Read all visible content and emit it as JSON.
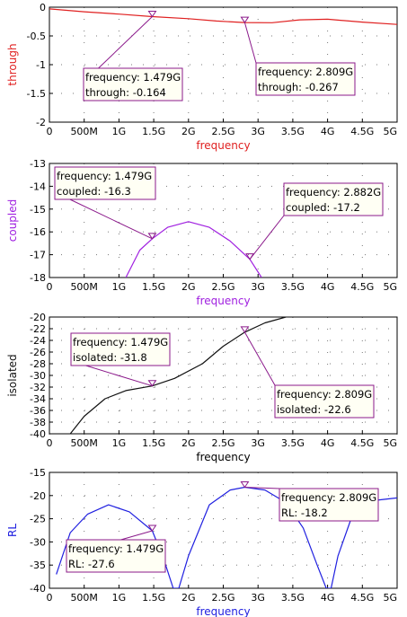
{
  "chart_data": [
    {
      "type": "line",
      "xlabel": "frequency",
      "ylabel": "through",
      "xlim": [
        0,
        5
      ],
      "ylim": [
        -2,
        0
      ],
      "x_ticks": [
        "0",
        "500M",
        "1G",
        "1.5G",
        "2G",
        "2.5G",
        "3G",
        "3.5G",
        "4G",
        "4.5G",
        "5G"
      ],
      "y_ticks": [
        "0",
        "-0.5",
        "-1",
        "-1.5",
        "-2"
      ],
      "grid": true,
      "series": [
        {
          "name": "through",
          "color": "#e02020",
          "x": [
            0,
            0.5,
            1.0,
            1.479,
            2.0,
            2.4,
            2.809,
            3.2,
            3.6,
            4.0,
            4.5,
            5.0
          ],
          "y": [
            -0.03,
            -0.08,
            -0.12,
            -0.164,
            -0.2,
            -0.24,
            -0.267,
            -0.27,
            -0.22,
            -0.21,
            -0.26,
            -0.3
          ]
        }
      ],
      "markers": [
        {
          "x": 1.479,
          "y": -0.164,
          "lines": [
            "frequency: 1.479G",
            "through: -0.164"
          ]
        },
        {
          "x": 2.809,
          "y": -0.267,
          "lines": [
            "frequency: 2.809G",
            "through: -0.267"
          ]
        }
      ]
    },
    {
      "type": "line",
      "xlabel": "frequency",
      "ylabel": "coupled",
      "xlim": [
        0,
        5
      ],
      "ylim": [
        -18,
        -13
      ],
      "x_ticks": [
        "0",
        "500M",
        "1G",
        "1.5G",
        "2G",
        "2.5G",
        "3G",
        "3.5G",
        "4G",
        "4.5G",
        "5G"
      ],
      "y_ticks": [
        "-13",
        "-14",
        "-15",
        "-16",
        "-17",
        "-18"
      ],
      "grid": true,
      "series": [
        {
          "name": "coupled",
          "color": "#a020e0",
          "x": [
            1.1,
            1.3,
            1.479,
            1.7,
            2.0,
            2.3,
            2.6,
            2.882,
            3.05
          ],
          "y": [
            -18.0,
            -16.8,
            -16.3,
            -15.8,
            -15.55,
            -15.8,
            -16.4,
            -17.2,
            -18.0
          ]
        }
      ],
      "markers": [
        {
          "x": 1.479,
          "y": -16.3,
          "lines": [
            "frequency: 1.479G",
            "coupled: -16.3"
          ]
        },
        {
          "x": 2.882,
          "y": -17.2,
          "lines": [
            "frequency: 2.882G",
            "coupled: -17.2"
          ]
        }
      ]
    },
    {
      "type": "line",
      "xlabel": "frequency",
      "ylabel": "isolated",
      "xlim": [
        0,
        5
      ],
      "ylim": [
        -40,
        -20
      ],
      "x_ticks": [
        "0",
        "500M",
        "1G",
        "1.5G",
        "2G",
        "2.5G",
        "3G",
        "3.5G",
        "4G",
        "4.5G",
        "5G"
      ],
      "y_ticks": [
        "-20",
        "-22",
        "-24",
        "-26",
        "-28",
        "-30",
        "-32",
        "-34",
        "-36",
        "-38",
        "-40"
      ],
      "grid": true,
      "series": [
        {
          "name": "isolated",
          "color": "#111111",
          "x": [
            0.3,
            0.5,
            0.8,
            1.1,
            1.479,
            1.8,
            2.2,
            2.5,
            2.809,
            3.1,
            3.4
          ],
          "y": [
            -40.0,
            -37.0,
            -34.0,
            -32.6,
            -31.8,
            -30.5,
            -28.0,
            -25.0,
            -22.6,
            -21.0,
            -20.0
          ]
        }
      ],
      "markers": [
        {
          "x": 1.479,
          "y": -31.8,
          "lines": [
            "frequency: 1.479G",
            "isolated: -31.8"
          ]
        },
        {
          "x": 2.809,
          "y": -22.6,
          "lines": [
            "frequency: 2.809G",
            "isolated: -22.6"
          ]
        }
      ]
    },
    {
      "type": "line",
      "xlabel": "frequency",
      "ylabel": "RL",
      "xlim": [
        0,
        5
      ],
      "ylim": [
        -40,
        -15
      ],
      "x_ticks": [
        "0",
        "500M",
        "1G",
        "1.5G",
        "2G",
        "2.5G",
        "3G",
        "3.5G",
        "4G",
        "4.5G",
        "5G"
      ],
      "y_ticks": [
        "-15",
        "-20",
        "-25",
        "-30",
        "-35",
        "-40"
      ],
      "grid": true,
      "series": [
        {
          "name": "RL",
          "color": "#2020e0",
          "x": [
            0.1,
            0.3,
            0.55,
            0.85,
            1.15,
            1.479,
            1.65,
            1.78,
            1.82,
            1.86,
            2.0,
            2.3,
            2.6,
            2.809,
            3.1,
            3.4,
            3.65,
            3.85,
            3.98,
            4.05,
            4.15,
            4.35,
            4.7,
            5.0
          ],
          "y": [
            -37.0,
            -28.0,
            -24.0,
            -22.0,
            -23.5,
            -27.6,
            -34.0,
            -40.0,
            -40.0,
            -40.0,
            -33.0,
            -22.0,
            -18.8,
            -18.2,
            -18.8,
            -21.5,
            -27.0,
            -35.0,
            -40.0,
            -40.0,
            -33.0,
            -24.5,
            -21.0,
            -20.5
          ]
        }
      ],
      "markers": [
        {
          "x": 1.479,
          "y": -27.6,
          "lines": [
            "frequency: 1.479G",
            "RL: -27.6"
          ]
        },
        {
          "x": 2.809,
          "y": -18.2,
          "lines": [
            "frequency: 2.809G",
            "RL: -18.2"
          ]
        }
      ]
    }
  ]
}
